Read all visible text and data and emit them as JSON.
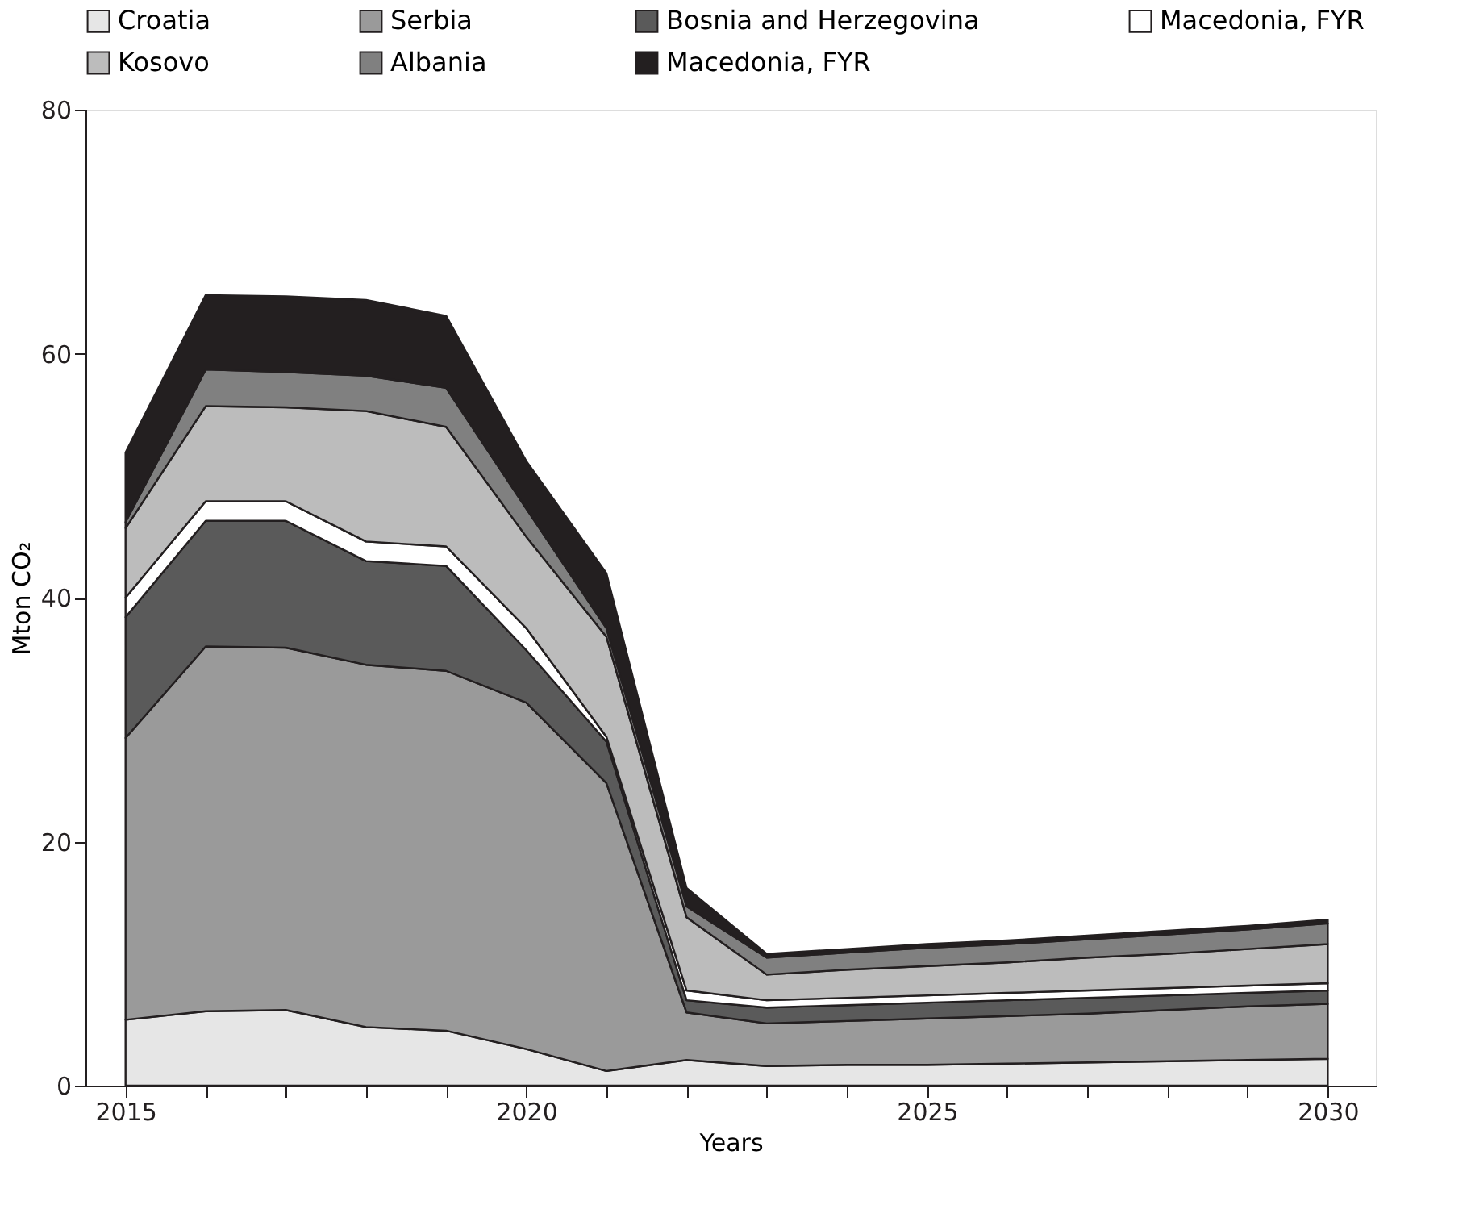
{
  "chart_data": {
    "type": "area",
    "stacked": true,
    "xlabel": "Years",
    "ylabel": "Mton CO₂",
    "x": [
      2015,
      2016,
      2017,
      2018,
      2019,
      2020,
      2021,
      2022,
      2023,
      2024,
      2025,
      2026,
      2027,
      2028,
      2029,
      2030
    ],
    "series": [
      {
        "name": "Croatia",
        "color": "#e6e6e6",
        "values": [
          5.4,
          6.1,
          6.2,
          4.8,
          4.5,
          3.0,
          1.2,
          2.1,
          1.6,
          1.7,
          1.7,
          1.8,
          1.9,
          2.0,
          2.1,
          2.2
        ]
      },
      {
        "name": "Serbia",
        "color": "#9a9a9a",
        "values": [
          23.1,
          29.9,
          29.7,
          29.7,
          29.5,
          28.4,
          23.6,
          3.9,
          3.5,
          3.6,
          3.8,
          3.9,
          4.0,
          4.2,
          4.4,
          4.5
        ]
      },
      {
        "name": "Bosnia and Herzegovina",
        "color": "#5a5a5a",
        "values": [
          9.9,
          10.3,
          10.4,
          8.5,
          8.6,
          4.3,
          3.4,
          1.0,
          1.3,
          1.3,
          1.3,
          1.3,
          1.3,
          1.2,
          1.1,
          1.1
        ]
      },
      {
        "name": "Macedonia, FYR",
        "color": "#ffffff",
        "values": [
          1.6,
          1.6,
          1.6,
          1.6,
          1.6,
          1.8,
          0.4,
          0.8,
          0.6,
          0.6,
          0.6,
          0.6,
          0.6,
          0.6,
          0.6,
          0.6
        ]
      },
      {
        "name": "Kosovo",
        "color": "#bcbcbc",
        "values": [
          5.7,
          7.8,
          7.7,
          10.7,
          9.8,
          7.5,
          8.2,
          6.0,
          2.1,
          2.3,
          2.4,
          2.5,
          2.7,
          2.8,
          3.0,
          3.2
        ]
      },
      {
        "name": "Albania",
        "color": "#808080",
        "values": [
          0.5,
          3.0,
          2.9,
          2.9,
          3.2,
          2.3,
          0.7,
          0.9,
          1.4,
          1.4,
          1.5,
          1.5,
          1.5,
          1.6,
          1.6,
          1.7
        ]
      },
      {
        "name": "Macedonia, FYR",
        "color": "#231f20",
        "values": [
          5.7,
          6.1,
          6.2,
          6.2,
          5.9,
          3.9,
          4.5,
          1.5,
          0.3,
          0.3,
          0.3,
          0.3,
          0.3,
          0.3,
          0.3,
          0.3
        ]
      }
    ],
    "xlim": [
      2014.5,
      2030.6
    ],
    "xticks": [
      2015,
      {
        "value": 2016,
        "label": null
      },
      {
        "value": 2017,
        "label": null
      },
      {
        "value": 2018,
        "label": null
      },
      {
        "value": 2019,
        "label": null
      },
      2020,
      {
        "value": 2021,
        "label": null
      },
      {
        "value": 2022,
        "label": null
      },
      {
        "value": 2023,
        "label": null
      },
      {
        "value": 2024,
        "label": null
      },
      2025,
      {
        "value": 2026,
        "label": null
      },
      {
        "value": 2027,
        "label": null
      },
      {
        "value": 2028,
        "label": null
      },
      {
        "value": 2029,
        "label": null
      },
      2030
    ],
    "ylim": [
      0,
      80
    ],
    "yticks": [
      0,
      20,
      40,
      60,
      80
    ],
    "grid": false,
    "legend": "top"
  }
}
